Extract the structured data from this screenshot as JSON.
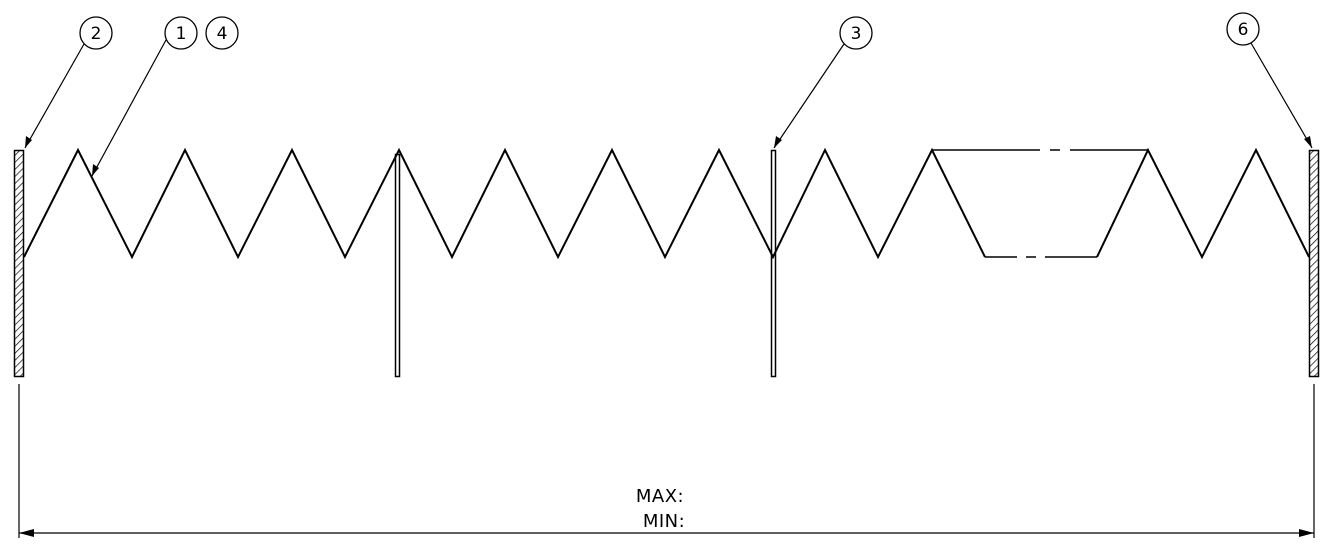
{
  "drawing": {
    "stroke_color": "#000000",
    "background": "#ffffff",
    "balloons": [
      {
        "id": "b2",
        "label": "2"
      },
      {
        "id": "b1",
        "label": "1"
      },
      {
        "id": "b4",
        "label": "4"
      },
      {
        "id": "b3",
        "label": "3"
      },
      {
        "id": "b6",
        "label": "6"
      }
    ],
    "dimension": {
      "max_label": "MAX:",
      "min_label": "MIN:"
    },
    "icons": {
      "leader_arrow": "leader-arrow-icon",
      "dimension_arrow": "dimension-arrow-icon"
    }
  }
}
